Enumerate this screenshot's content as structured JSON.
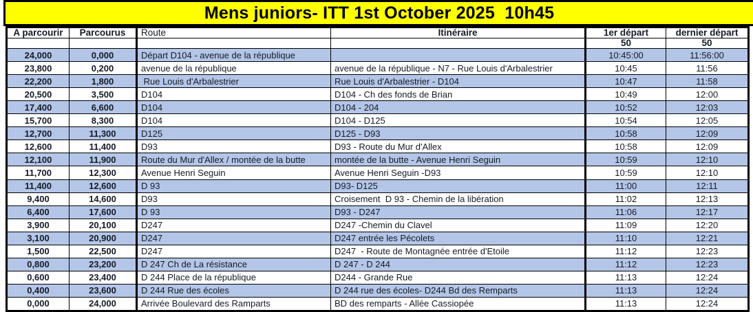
{
  "title": "Mens juniors- ITT 1st October 2025  10h45",
  "colors": {
    "title_bg": "#FFFF00",
    "title_text": "#000000",
    "row_alt_bg": "#B4C6E7",
    "row_bg": "#FFFFFF",
    "border": "#000000",
    "text": "#141A26"
  },
  "table": {
    "headers": [
      "A parcourir",
      "Parcourus",
      "Route",
      "Itinéraire",
      "1er départ",
      "dernier départ"
    ],
    "start_interval_row": [
      "",
      "",
      "",
      "",
      "50",
      "50"
    ],
    "rows": [
      [
        "24,000",
        "0,000",
        "Départ D104 - avenue de la république",
        "",
        "10:45:00",
        "11:56:00"
      ],
      [
        "23,800",
        "0,200",
        "avenue de la république",
        "avenue de la république - N7 - Rue Louis d'Arbalestrier",
        "10:45",
        "11:56"
      ],
      [
        "22,200",
        "1,800",
        " Rue Louis d'Arbalestrier",
        "Rue Louis d'Arbalestrier - D104",
        "10:47",
        "11:58"
      ],
      [
        "20,500",
        "3,500",
        "D104",
        "D104 - Ch des fonds de Brian",
        "10:49",
        "12:00"
      ],
      [
        "17,400",
        "6,600",
        "D104",
        "D104 - 204",
        "10:52",
        "12:03"
      ],
      [
        "15,700",
        "8,300",
        "D104",
        "D104 - D125",
        "10:54",
        "12:05"
      ],
      [
        "12,700",
        "11,300",
        "D125",
        "D125 - D93",
        "10:58",
        "12:09"
      ],
      [
        "12,600",
        "11,400",
        "D93",
        "D93 - Route du Mur d'Allex",
        "10:58",
        "12:09"
      ],
      [
        "12,100",
        "11,900",
        "Route du Mur d'Allex / montée de la butte",
        "montée de la butte - Avenue Henri Seguin",
        "10:59",
        "12:10"
      ],
      [
        "11,700",
        "12,300",
        "Avenue Henri Seguin",
        "Avenue Henri Seguin -D93",
        "10:59",
        "12:10"
      ],
      [
        "11,400",
        "12,600",
        "D 93",
        "D93- D125",
        "11:00",
        "12:11"
      ],
      [
        "9,400",
        "14,600",
        "D93",
        "Croisement  D 93 - Chemin de la libération",
        "11:02",
        "12:13"
      ],
      [
        "6,400",
        "17,600",
        "D 93",
        "D93 - D247",
        "11:06",
        "12:17"
      ],
      [
        "3,900",
        "20,100",
        "D247",
        "D247 -Chemin du Clavel",
        "11:09",
        "12:20"
      ],
      [
        "3,100",
        "20,900",
        "D247",
        "D247 entrée les Pécolets",
        "11:10",
        "12:21"
      ],
      [
        "1,500",
        "22,500",
        "D247",
        "D247  - Route de Montagnée entrée d'Etoile",
        "11:12",
        "12:23"
      ],
      [
        "0,800",
        "23,200",
        "D 247 Ch de La résistance",
        "D 247 - D 244",
        "11:12",
        "12:23"
      ],
      [
        "0,600",
        "23,400",
        "D 244 Place de la république",
        "D244 - Grande Rue",
        "11:13",
        "12:24"
      ],
      [
        "0,400",
        "23,600",
        "D 244 Rue des écoles",
        "D 244 rue des écoles- D244 Bd des Remparts",
        "11:13",
        "12:24"
      ],
      [
        "0,000",
        "24,000",
        "Arrivée Boulevard des Ramparts",
        "BD des remparts - Allée Cassiopée",
        "11:13",
        "12:24"
      ]
    ]
  }
}
